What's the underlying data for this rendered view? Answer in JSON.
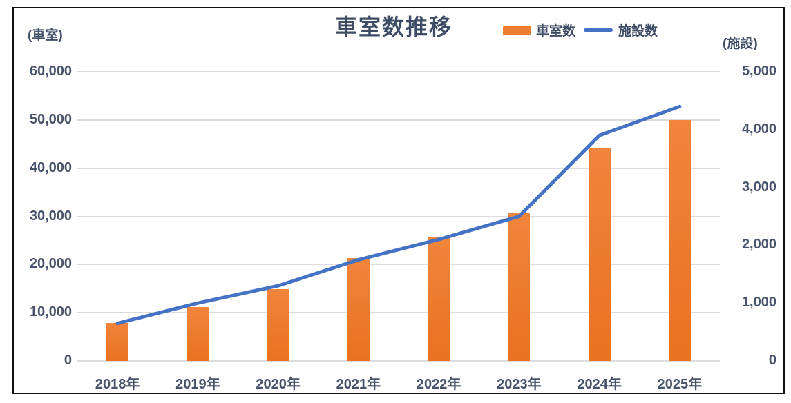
{
  "title": "車室数推移",
  "legend": {
    "items": [
      {
        "label": "車室数",
        "swatch": "bar-swatch-icon",
        "color": "#ED7D31"
      },
      {
        "label": "施設数",
        "swatch": "line-swatch-icon",
        "color": "#4472C4"
      }
    ]
  },
  "left_axis": {
    "unit": "(車室)",
    "ticks": [
      "60,000",
      "50,000",
      "40,000",
      "30,000",
      "20,000",
      "10,000",
      "0"
    ],
    "min": 0,
    "max": 60000
  },
  "right_axis": {
    "unit": "(施設)",
    "ticks": [
      "5,000",
      "4,000",
      "3,000",
      "2,000",
      "1,000",
      "0"
    ],
    "min": 0,
    "max": 5000
  },
  "chart_data": {
    "type": "bar",
    "title": "車室数推移",
    "categories": [
      "2018年",
      "2019年",
      "2020年",
      "2021年",
      "2022年",
      "2023年",
      "2024年",
      "2025年"
    ],
    "series": [
      {
        "name": "車室数",
        "type": "bar",
        "axis": "left",
        "color": "#ED7D31",
        "values": [
          7900,
          11100,
          14900,
          21400,
          25800,
          30700,
          44200,
          50000
        ]
      },
      {
        "name": "施設数",
        "type": "line",
        "axis": "right",
        "color": "#4472C4",
        "values": [
          650,
          1000,
          1300,
          1750,
          2100,
          2500,
          3900,
          4400
        ]
      }
    ],
    "left_ylim": [
      0,
      60000
    ],
    "right_ylim": [
      0,
      5000
    ],
    "grid": true,
    "legend_position": "top-right"
  },
  "colors": {
    "bar": "#ED7D31",
    "line": "#4472C4",
    "text": "#3E4C66",
    "gridline": "#DCDCDC",
    "frame_border": "#111111",
    "background": "#FFFFFF"
  }
}
